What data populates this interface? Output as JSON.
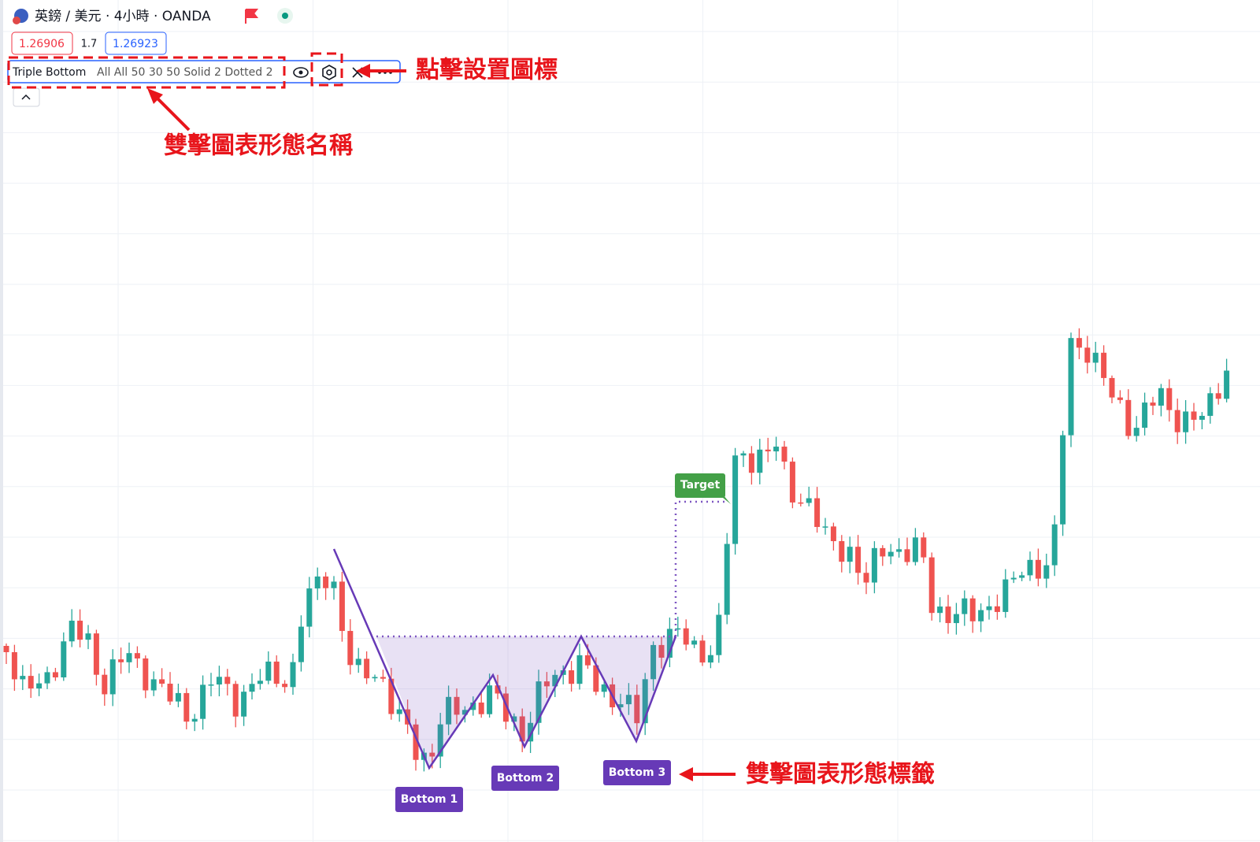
{
  "header": {
    "symbol": "英鎊 / 美元 · 4小時 · OANDA",
    "bid": "1.26906",
    "spread": "1.7",
    "ask": "1.26923"
  },
  "indicator": {
    "name": "Triple Bottom",
    "settings": "All All 50 30 50 Solid 2 Dotted 2"
  },
  "pattern_labels": {
    "target": "Target",
    "bottoms": [
      "Bottom 1",
      "Bottom 2",
      "Bottom 3"
    ]
  },
  "annotations": {
    "settings_icon": "點擊設置圖標",
    "pattern_name": "雙擊圖表形態名稱",
    "pattern_label": "雙擊圖表形態標籤"
  }
}
